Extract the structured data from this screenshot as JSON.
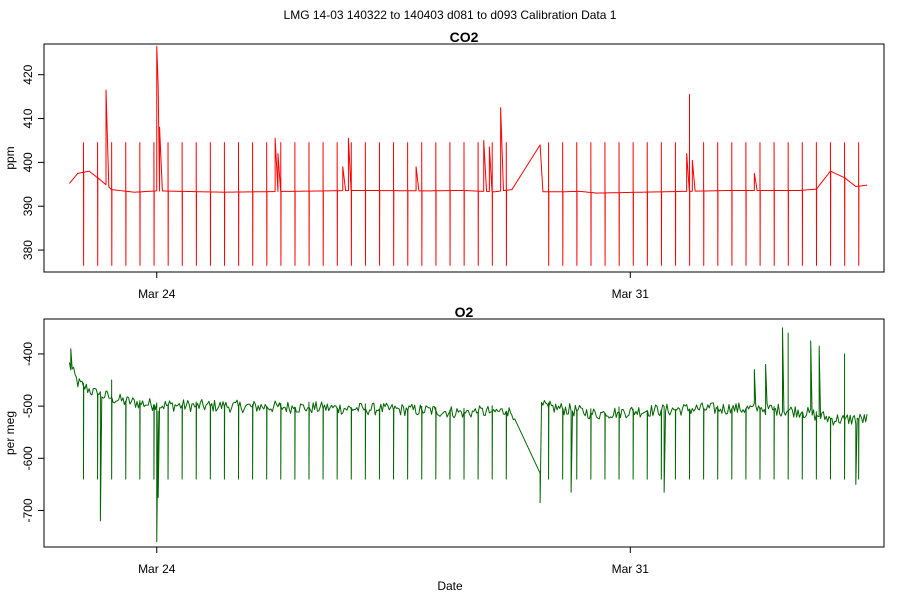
{
  "figure": {
    "suptitle": "LMG   14-03    140322 to 140403    d081 to d093   Calibration Data 1"
  },
  "chart_data": [
    {
      "type": "line",
      "title": "CO2",
      "xlabel": "",
      "ylabel": "ppm",
      "xlim": [
        "2014-03-22 08:00",
        "2014-04-03 18:00"
      ],
      "ylim": [
        375,
        427
      ],
      "x_ticks": [
        {
          "date": "2014-03-24",
          "label": "Mar 24"
        },
        {
          "date": "2014-03-31",
          "label": "Mar 31"
        }
      ],
      "y_ticks": [
        380,
        390,
        400,
        410,
        420
      ],
      "grid": false,
      "series": [
        {
          "color": "#ff0000",
          "baseline": [
            [
              "2014-03-22 17:00",
              395.2
            ],
            [
              "2014-03-22 20:00",
              397.5
            ],
            [
              "2014-03-23 00:00",
              398.0
            ],
            [
              "2014-03-23 04:00",
              396.0
            ],
            [
              "2014-03-23 08:00",
              393.8
            ],
            [
              "2014-03-23 16:00",
              393.2
            ],
            [
              "2014-03-24 00:00",
              393.5
            ],
            [
              "2014-03-25 00:00",
              393.2
            ],
            [
              "2014-03-26 00:00",
              393.4
            ],
            [
              "2014-03-27 00:00",
              393.6
            ],
            [
              "2014-03-28 00:00",
              393.5
            ],
            [
              "2014-03-28 12:00",
              393.6
            ],
            [
              "2014-03-29 00:00",
              393.3
            ],
            [
              "2014-03-29 06:00",
              393.8
            ],
            [
              "2014-03-29 16:00",
              404.0
            ],
            [
              "2014-03-29 16:30",
              393.3
            ],
            [
              "2014-03-30 00:00",
              393.3
            ],
            [
              "2014-03-30 06:00",
              393.4
            ],
            [
              "2014-03-30 12:00",
              393.0
            ],
            [
              "2014-03-31 12:00",
              393.3
            ],
            [
              "2014-04-01 12:00",
              393.6
            ],
            [
              "2014-04-02 12:00",
              393.6
            ],
            [
              "2014-04-02 18:00",
              393.9
            ],
            [
              "2014-04-02 23:00",
              398.0
            ],
            [
              "2014-04-03 04:00",
              396.5
            ],
            [
              "2014-04-03 08:00",
              394.5
            ],
            [
              "2014-04-03 12:00",
              394.8
            ]
          ],
          "calibration_cycle": {
            "start": "2014-03-22 22:00",
            "end": "2014-04-03 12:00",
            "interval_hours": 5,
            "skip_from": "2014-03-29 07:00",
            "skip_to": "2014-03-29 16:00",
            "high": 404.5,
            "low": 376.5
          },
          "spikes": [
            [
              "2014-03-23 06:00",
              416.5
            ],
            [
              "2014-03-24 00:00",
              426.5
            ],
            [
              "2014-03-24 00:30",
              417.5
            ],
            [
              "2014-03-24 01:00",
              408.0
            ],
            [
              "2014-03-23 23:00",
              397.0
            ],
            [
              "2014-03-25 18:00",
              405.5
            ],
            [
              "2014-03-25 19:00",
              402.0
            ],
            [
              "2014-03-26 20:00",
              405.5
            ],
            [
              "2014-03-26 21:00",
              403.5
            ],
            [
              "2014-03-26 18:00",
              399.0
            ],
            [
              "2014-03-27 20:00",
              399.0
            ],
            [
              "2014-03-28 20:00",
              405.0
            ],
            [
              "2014-03-28 22:00",
              403.5
            ],
            [
              "2014-03-29 02:00",
              412.5
            ],
            [
              "2014-03-31 21:00",
              415.5
            ],
            [
              "2014-03-31 20:00",
              402.0
            ],
            [
              "2014-03-31 22:00",
              400.5
            ],
            [
              "2014-04-01 20:00",
              397.5
            ],
            [
              "2014-04-01 22:00",
              396.0
            ]
          ]
        }
      ]
    },
    {
      "type": "line",
      "title": "O2",
      "xlabel": "Date",
      "ylabel": "per meg",
      "xlim": [
        "2014-03-22 08:00",
        "2014-04-03 18:00"
      ],
      "ylim": [
        -770,
        -333
      ],
      "x_ticks": [
        {
          "date": "2014-03-24",
          "label": "Mar 24"
        },
        {
          "date": "2014-03-31",
          "label": "Mar 31"
        }
      ],
      "y_ticks": [
        -700,
        -600,
        -500,
        -400
      ],
      "grid": false,
      "series": [
        {
          "color": "#006400",
          "baseline": [
            [
              "2014-03-22 17:00",
              -420
            ],
            [
              "2014-03-22 20:00",
              -455
            ],
            [
              "2014-03-23 02:00",
              -475
            ],
            [
              "2014-03-23 12:00",
              -490
            ],
            [
              "2014-03-24 00:00",
              -498
            ],
            [
              "2014-03-25 00:00",
              -500
            ],
            [
              "2014-03-26 00:00",
              -502
            ],
            [
              "2014-03-27 00:00",
              -505
            ],
            [
              "2014-03-28 00:00",
              -508
            ],
            [
              "2014-03-28 12:00",
              -512
            ],
            [
              "2014-03-29 04:00",
              -510
            ],
            [
              "2014-03-29 07:00",
              -515
            ],
            [
              "2014-03-29 16:00",
              -640
            ],
            [
              "2014-03-29 16:30",
              -500
            ],
            [
              "2014-03-30 00:00",
              -505
            ],
            [
              "2014-03-30 12:00",
              -515
            ],
            [
              "2014-03-31 00:00",
              -510
            ],
            [
              "2014-04-01 00:00",
              -505
            ],
            [
              "2014-04-02 00:00",
              -505
            ],
            [
              "2014-04-02 12:00",
              -510
            ],
            [
              "2014-04-03 00:00",
              -525
            ],
            [
              "2014-04-03 12:00",
              -525
            ]
          ],
          "noise_amplitude": 12,
          "calibration_cycle": {
            "start": "2014-03-22 22:00",
            "end": "2014-04-03 12:00",
            "interval_hours": 5,
            "skip_from": "2014-03-29 07:00",
            "skip_to": "2014-03-29 16:00",
            "low": -640
          },
          "spikes": [
            [
              "2014-03-22 17:30",
              -390
            ],
            [
              "2014-03-23 04:00",
              -720
            ],
            [
              "2014-03-24 00:00",
              -760
            ],
            [
              "2014-03-24 00:30",
              -675
            ],
            [
              "2014-03-23 08:00",
              -450
            ],
            [
              "2014-03-29 16:00",
              -685
            ],
            [
              "2014-03-30 03:00",
              -665
            ],
            [
              "2014-03-31 12:00",
              -665
            ],
            [
              "2014-04-02 06:00",
              -350
            ],
            [
              "2014-04-02 08:00",
              -360
            ],
            [
              "2014-04-02 16:00",
              -375
            ],
            [
              "2014-04-02 19:00",
              -385
            ],
            [
              "2014-04-03 04:00",
              -400
            ],
            [
              "2014-04-02 00:00",
              -420
            ],
            [
              "2014-04-01 20:00",
              -430
            ],
            [
              "2014-04-03 08:00",
              -650
            ]
          ]
        }
      ]
    }
  ]
}
